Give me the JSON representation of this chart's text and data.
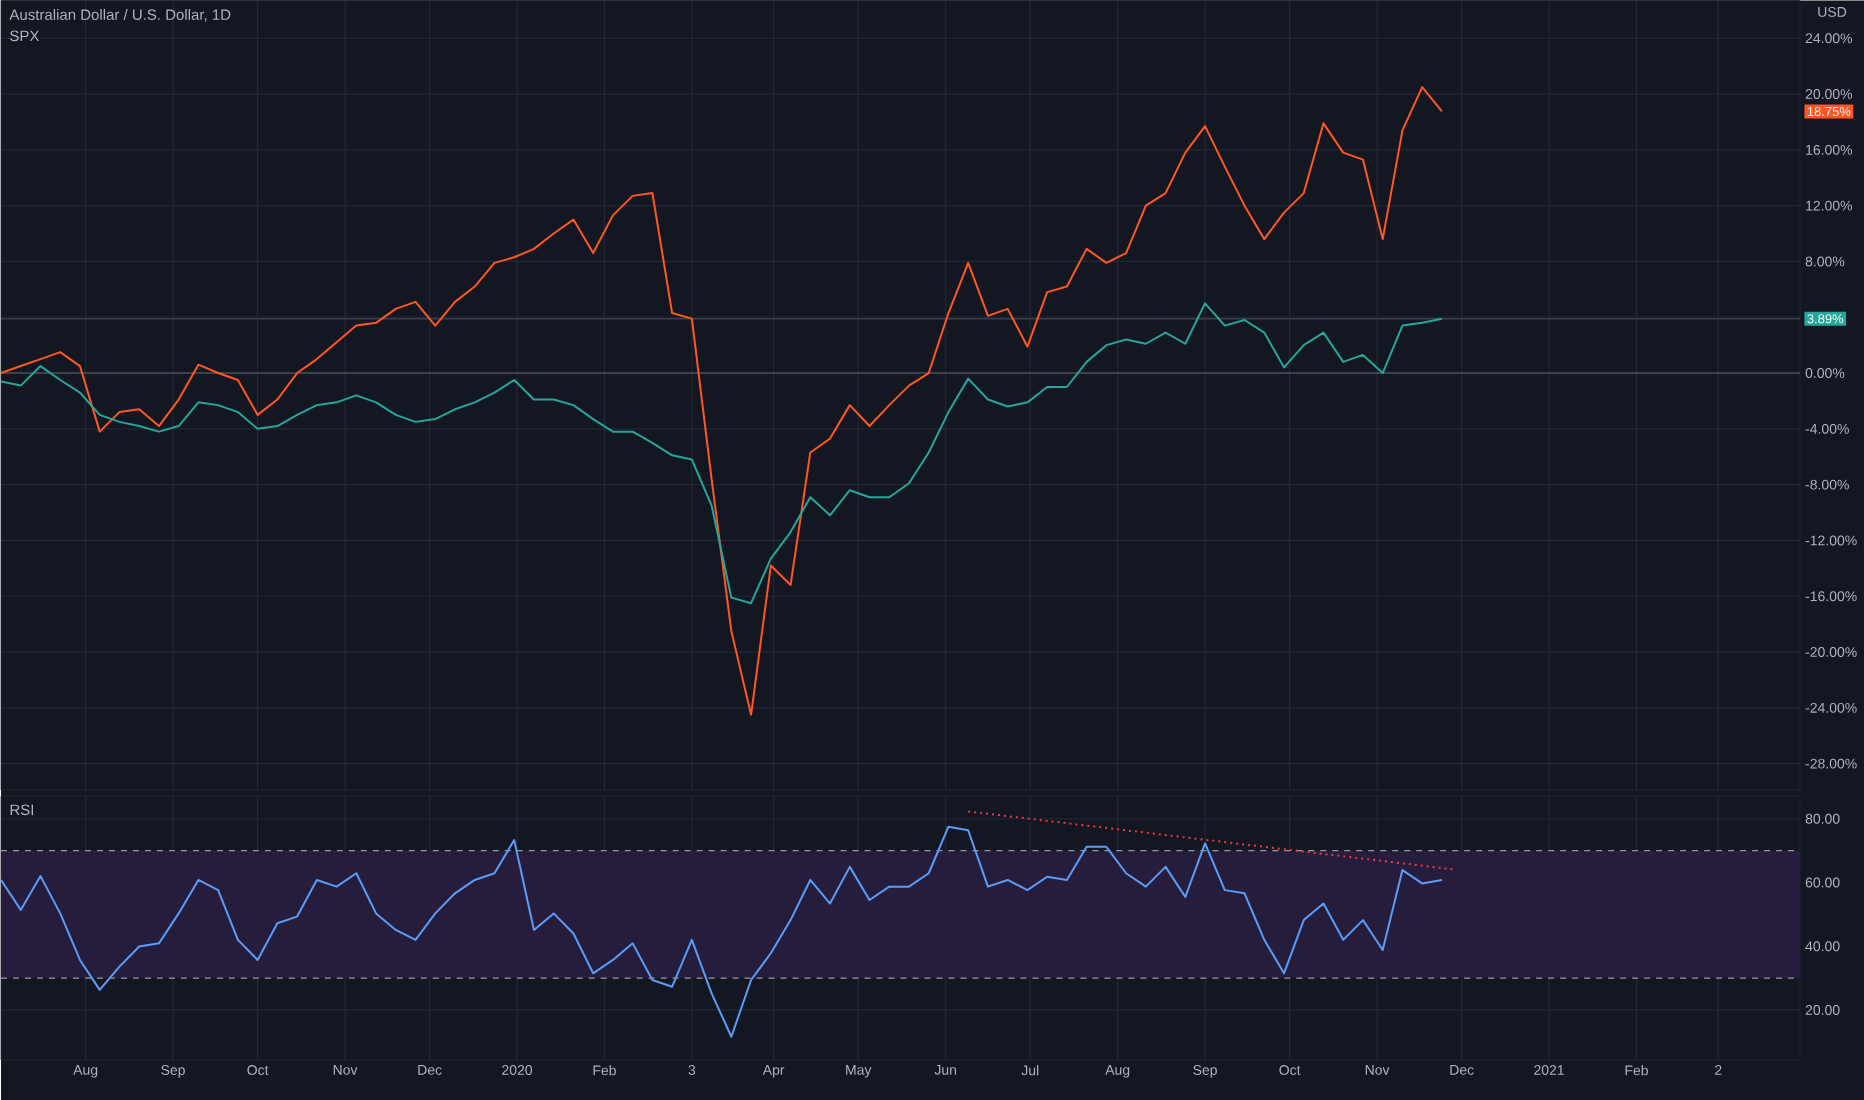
{
  "chart_data": [
    {
      "type": "line",
      "title": "Australian Dollar / U.S. Dollar, 1D",
      "subtitle": "SPX",
      "ylabel": "USD",
      "x": [
        "2019-07-02",
        "2019-07-09",
        "2019-07-16",
        "2019-07-23",
        "2019-07-30",
        "2019-08-06",
        "2019-08-13",
        "2019-08-20",
        "2019-08-27",
        "2019-09-03",
        "2019-09-10",
        "2019-09-17",
        "2019-09-24",
        "2019-10-01",
        "2019-10-08",
        "2019-10-15",
        "2019-10-22",
        "2019-10-29",
        "2019-11-05",
        "2019-11-12",
        "2019-11-19",
        "2019-11-26",
        "2019-12-03",
        "2019-12-10",
        "2019-12-17",
        "2019-12-24",
        "2019-12-31",
        "2020-01-07",
        "2020-01-14",
        "2020-01-21",
        "2020-01-28",
        "2020-02-04",
        "2020-02-11",
        "2020-02-18",
        "2020-02-25",
        "2020-03-03",
        "2020-03-10",
        "2020-03-17",
        "2020-03-24",
        "2020-03-31",
        "2020-04-07",
        "2020-04-14",
        "2020-04-21",
        "2020-04-28",
        "2020-05-05",
        "2020-05-12",
        "2020-05-19",
        "2020-05-26",
        "2020-06-02",
        "2020-06-09",
        "2020-06-16",
        "2020-06-23",
        "2020-06-30",
        "2020-07-07",
        "2020-07-14",
        "2020-07-21",
        "2020-07-28",
        "2020-08-04",
        "2020-08-11",
        "2020-08-18",
        "2020-08-25",
        "2020-09-01",
        "2020-09-08",
        "2020-09-15",
        "2020-09-22",
        "2020-09-29",
        "2020-10-06",
        "2020-10-13",
        "2020-10-20",
        "2020-10-27",
        "2020-11-03",
        "2020-11-10",
        "2020-11-17",
        "2020-11-24"
      ],
      "series": [
        {
          "color": "#ff5722",
          "values": [
            0.0,
            0.5,
            1.0,
            1.5,
            0.5,
            -4.2,
            -2.8,
            -2.6,
            -3.8,
            -1.9,
            0.6,
            0.0,
            -0.5,
            -3.0,
            -1.9,
            0.0,
            1.0,
            2.2,
            3.4,
            3.6,
            4.6,
            5.1,
            3.4,
            5.1,
            6.2,
            7.9,
            8.3,
            8.9,
            10.0,
            11.0,
            8.6,
            11.3,
            12.7,
            12.9,
            4.3,
            3.9,
            -7.6,
            -18.5,
            -24.5,
            -13.8,
            -15.2,
            -5.7,
            -4.7,
            -2.3,
            -3.8,
            -2.3,
            -0.9,
            0.0,
            4.3,
            7.9,
            4.1,
            4.6,
            1.9,
            5.8,
            6.2,
            8.9,
            7.9,
            8.6,
            12.0,
            12.9,
            15.8,
            17.7,
            14.8,
            12.0,
            9.6,
            11.5,
            12.9,
            17.9,
            15.8,
            15.3,
            9.6,
            17.4,
            20.5,
            18.75
          ]
        },
        {
          "color": "#26a69a",
          "values": [
            -0.6,
            -0.9,
            0.5,
            -0.5,
            -1.4,
            -3.0,
            -3.5,
            -3.8,
            -4.2,
            -3.8,
            -2.1,
            -2.3,
            -2.8,
            -4.0,
            -3.8,
            -3.0,
            -2.3,
            -2.1,
            -1.6,
            -2.1,
            -3.0,
            -3.5,
            -3.3,
            -2.6,
            -2.1,
            -1.4,
            -0.5,
            -1.9,
            -1.9,
            -2.3,
            -3.3,
            -4.2,
            -4.2,
            -5.0,
            -5.9,
            -6.2,
            -9.5,
            -16.1,
            -16.5,
            -13.3,
            -11.4,
            -8.9,
            -10.2,
            -8.4,
            -8.9,
            -8.9,
            -7.9,
            -5.7,
            -2.8,
            -0.4,
            -1.9,
            -2.4,
            -2.1,
            -1.0,
            -1.0,
            0.8,
            2.0,
            2.4,
            2.1,
            2.9,
            2.1,
            5.0,
            3.4,
            3.8,
            2.9,
            0.4,
            2.0,
            2.9,
            0.8,
            1.3,
            0.0,
            3.4,
            3.6,
            3.89
          ]
        }
      ],
      "xlim": [
        "2019-07-02",
        "2021-03-31"
      ],
      "xticks": [
        {
          "value": "2019-08-01",
          "label": null
        },
        {
          "value": "2019-09-01",
          "label": null
        },
        {
          "value": "2019-10-01",
          "label": null
        },
        {
          "value": "2019-11-01",
          "label": null
        },
        {
          "value": "2019-12-01",
          "label": null
        },
        {
          "value": "2020-01-01",
          "label": null
        },
        {
          "value": "2020-02-01",
          "label": null
        },
        {
          "value": "2020-03-03",
          "label": null
        },
        {
          "value": "2020-04-01",
          "label": null
        },
        {
          "value": "2020-05-01",
          "label": null
        },
        {
          "value": "2020-06-01",
          "label": null
        },
        {
          "value": "2020-07-01",
          "label": null
        },
        {
          "value": "2020-08-01",
          "label": null
        },
        {
          "value": "2020-09-01",
          "label": null
        },
        {
          "value": "2020-10-01",
          "label": null
        },
        {
          "value": "2020-11-01",
          "label": null
        },
        {
          "value": "2020-12-01",
          "label": null
        },
        {
          "value": "2021-01-01",
          "label": null
        },
        {
          "value": "2021-02-01",
          "label": null
        },
        {
          "value": "2021-03-02",
          "label": null
        }
      ],
      "ylim": [
        -29.9,
        26.7
      ],
      "yticks": [
        {
          "value": -28,
          "label": "-28.00%"
        },
        {
          "value": -24,
          "label": "-24.00%"
        },
        {
          "value": -20,
          "label": "-20.00%"
        },
        {
          "value": -16,
          "label": "-16.00%"
        },
        {
          "value": -12,
          "label": "-12.00%"
        },
        {
          "value": -8,
          "label": "-8.00%"
        },
        {
          "value": -4,
          "label": "-4.00%"
        },
        {
          "value": 0,
          "label": "0.00%"
        },
        {
          "value": 4,
          "label": null
        },
        {
          "value": 8,
          "label": "8.00%"
        },
        {
          "value": 12,
          "label": "12.00%"
        },
        {
          "value": 16,
          "label": "16.00%"
        },
        {
          "value": 20,
          "label": "20.00%"
        },
        {
          "value": 24,
          "label": "24.00%"
        }
      ],
      "ref_lines": [
        {
          "axis": "y",
          "value": 0,
          "color": "#4a4e59"
        },
        {
          "axis": "y",
          "value": 3.89,
          "color": "#3a3e4a"
        }
      ],
      "annotations": [
        "18.75%",
        "3.89%"
      ],
      "grid": true,
      "tick_labels": "y"
    },
    {
      "type": "line",
      "title": "RSI",
      "x": [
        "2019-07-02",
        "2019-07-09",
        "2019-07-16",
        "2019-07-23",
        "2019-07-30",
        "2019-08-06",
        "2019-08-13",
        "2019-08-20",
        "2019-08-27",
        "2019-09-03",
        "2019-09-10",
        "2019-09-17",
        "2019-09-24",
        "2019-10-01",
        "2019-10-08",
        "2019-10-15",
        "2019-10-22",
        "2019-10-29",
        "2019-11-05",
        "2019-11-12",
        "2019-11-19",
        "2019-11-26",
        "2019-12-03",
        "2019-12-10",
        "2019-12-17",
        "2019-12-24",
        "2019-12-31",
        "2020-01-07",
        "2020-01-14",
        "2020-01-21",
        "2020-01-28",
        "2020-02-04",
        "2020-02-11",
        "2020-02-18",
        "2020-02-25",
        "2020-03-03",
        "2020-03-10",
        "2020-03-17",
        "2020-03-24",
        "2020-03-31",
        "2020-04-07",
        "2020-04-14",
        "2020-04-21",
        "2020-04-28",
        "2020-05-05",
        "2020-05-12",
        "2020-05-19",
        "2020-05-26",
        "2020-06-02",
        "2020-06-09",
        "2020-06-16",
        "2020-06-23",
        "2020-06-30",
        "2020-07-07",
        "2020-07-14",
        "2020-07-21",
        "2020-07-28",
        "2020-08-04",
        "2020-08-11",
        "2020-08-18",
        "2020-08-25",
        "2020-09-01",
        "2020-09-08",
        "2020-09-15",
        "2020-09-22",
        "2020-09-29",
        "2020-10-06",
        "2020-10-13",
        "2020-10-20",
        "2020-10-27",
        "2020-11-03",
        "2020-11-10",
        "2020-11-17",
        "2020-11-24"
      ],
      "series": [
        {
          "color": "#5b9cf6",
          "values": [
            60.8,
            51.4,
            62,
            50.3,
            35.7,
            26.3,
            33.6,
            39.9,
            40.9,
            50.3,
            60.8,
            57.6,
            42.0,
            35.7,
            47.2,
            49.3,
            60.8,
            58.7,
            62.9,
            50.3,
            45.1,
            42.0,
            50.3,
            56.6,
            60.8,
            62.9,
            73.3,
            45.1,
            50.3,
            44.0,
            31.5,
            35.7,
            40.9,
            29.4,
            27.3,
            42.0,
            25.2,
            11.6,
            29.4,
            37.8,
            48.2,
            60.8,
            53.4,
            64.9,
            54.5,
            58.7,
            58.7,
            62.9,
            77.5,
            76.4,
            58.7,
            60.8,
            57.6,
            61.8,
            60.8,
            71.2,
            71.2,
            62.9,
            58.7,
            64.9,
            55.5,
            72.3,
            57.6,
            56.6,
            42.0,
            31.5,
            48.2,
            53.4,
            42.0,
            48.2,
            38.8,
            63.9,
            59.7,
            60.8
          ]
        },
        {
          "type": "line",
          "color": "#f23645",
          "line_style": "dotted",
          "x": [
            "2020-06-09",
            "2020-11-28"
          ],
          "values": [
            82.3,
            64.1
          ]
        }
      ],
      "xlim": [
        "2019-07-02",
        "2021-03-31"
      ],
      "xticks": [
        {
          "value": "2019-08-01",
          "label": "Aug"
        },
        {
          "value": "2019-09-01",
          "label": "Sep"
        },
        {
          "value": "2019-10-01",
          "label": "Oct"
        },
        {
          "value": "2019-11-01",
          "label": "Nov"
        },
        {
          "value": "2019-12-01",
          "label": "Dec"
        },
        {
          "value": "2020-01-01",
          "label": "2020"
        },
        {
          "value": "2020-02-01",
          "label": "Feb"
        },
        {
          "value": "2020-03-03",
          "label": "3"
        },
        {
          "value": "2020-04-01",
          "label": "Apr"
        },
        {
          "value": "2020-05-01",
          "label": "May"
        },
        {
          "value": "2020-06-01",
          "label": "Jun"
        },
        {
          "value": "2020-07-01",
          "label": "Jul"
        },
        {
          "value": "2020-08-01",
          "label": "Aug"
        },
        {
          "value": "2020-09-01",
          "label": "Sep"
        },
        {
          "value": "2020-10-01",
          "label": "Oct"
        },
        {
          "value": "2020-11-01",
          "label": "Nov"
        },
        {
          "value": "2020-12-01",
          "label": "Dec"
        },
        {
          "value": "2021-01-01",
          "label": "2021"
        },
        {
          "value": "2021-02-01",
          "label": "Feb"
        },
        {
          "value": "2021-03-02",
          "label": "2"
        }
      ],
      "ylim": [
        4.3,
        87.1
      ],
      "yticks": [
        {
          "value": 20,
          "label": "20.00"
        },
        {
          "value": 40,
          "label": "40.00"
        },
        {
          "value": 60,
          "label": "60.00"
        },
        {
          "value": 80,
          "label": "80.00"
        }
      ],
      "bands": [
        {
          "axis": "y",
          "from": 30,
          "to": 70,
          "color": "#261d3d"
        }
      ],
      "ref_lines": [
        {
          "axis": "y",
          "value": 70,
          "color": "#9598a1",
          "line_style": "dashed"
        },
        {
          "axis": "y",
          "value": 30,
          "color": "#9598a1",
          "line_style": "dashed"
        }
      ],
      "grid": true
    }
  ]
}
